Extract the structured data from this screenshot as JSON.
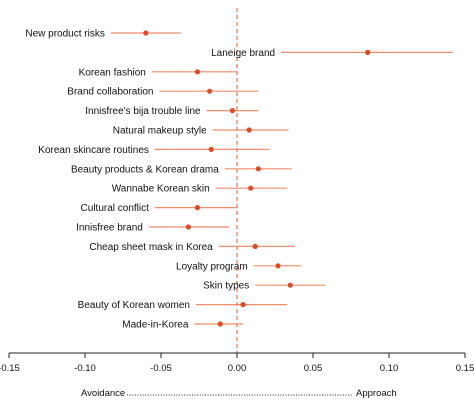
{
  "chart_data": {
    "type": "scatter",
    "subtype": "forest-plot",
    "xlim": [
      -0.15,
      0.15
    ],
    "x_ticks": [
      "-0.15",
      "-0.10",
      "-0.05",
      "0.00",
      "0.05",
      "0.10",
      "0.15"
    ],
    "x_tick_values": [
      -0.15,
      -0.1,
      -0.05,
      0.0,
      0.05,
      0.1,
      0.15
    ],
    "reference_line": 0.0,
    "footer": {
      "left": "Avoidance",
      "right": "Approach"
    },
    "colors": {
      "point": "#e04a24",
      "interval": "#f08c6c",
      "reference": "#e8734f",
      "axis": "#222222"
    },
    "rows": [
      {
        "label": "New product risks",
        "estimate": -0.06,
        "lower": -0.083,
        "upper": -0.037
      },
      {
        "label": "Laneige brand",
        "estimate": 0.086,
        "lower": 0.029,
        "upper": 0.142
      },
      {
        "label": "Korean fashion",
        "estimate": -0.026,
        "lower": -0.056,
        "upper": 0.0
      },
      {
        "label": "Brand collaboration",
        "estimate": -0.018,
        "lower": -0.051,
        "upper": 0.014
      },
      {
        "label": "Innisfree's bija trouble line",
        "estimate": -0.003,
        "lower": -0.02,
        "upper": 0.014
      },
      {
        "label": "Natural makeup style",
        "estimate": 0.008,
        "lower": -0.016,
        "upper": 0.034
      },
      {
        "label": "Korean skincare routines",
        "estimate": -0.017,
        "lower": -0.054,
        "upper": 0.021
      },
      {
        "label": "Beauty products & Korean drama",
        "estimate": 0.014,
        "lower": -0.008,
        "upper": 0.036
      },
      {
        "label": "Wannabe Korean skin",
        "estimate": 0.009,
        "lower": -0.014,
        "upper": 0.033
      },
      {
        "label": "Cultural conflict",
        "estimate": -0.026,
        "lower": -0.054,
        "upper": 0.0
      },
      {
        "label": "Innisfree brand",
        "estimate": -0.032,
        "lower": -0.058,
        "upper": -0.005
      },
      {
        "label": "Cheap sheet mask in Korea",
        "estimate": 0.012,
        "lower": -0.012,
        "upper": 0.038
      },
      {
        "label": "Loyalty program",
        "estimate": 0.027,
        "lower": 0.011,
        "upper": 0.042
      },
      {
        "label": "Skin types",
        "estimate": 0.035,
        "lower": 0.012,
        "upper": 0.058
      },
      {
        "label": "Beauty of Korean women",
        "estimate": 0.004,
        "lower": -0.027,
        "upper": 0.033
      },
      {
        "label": "Made-in-Korea",
        "estimate": -0.011,
        "lower": -0.028,
        "upper": 0.004
      }
    ]
  }
}
